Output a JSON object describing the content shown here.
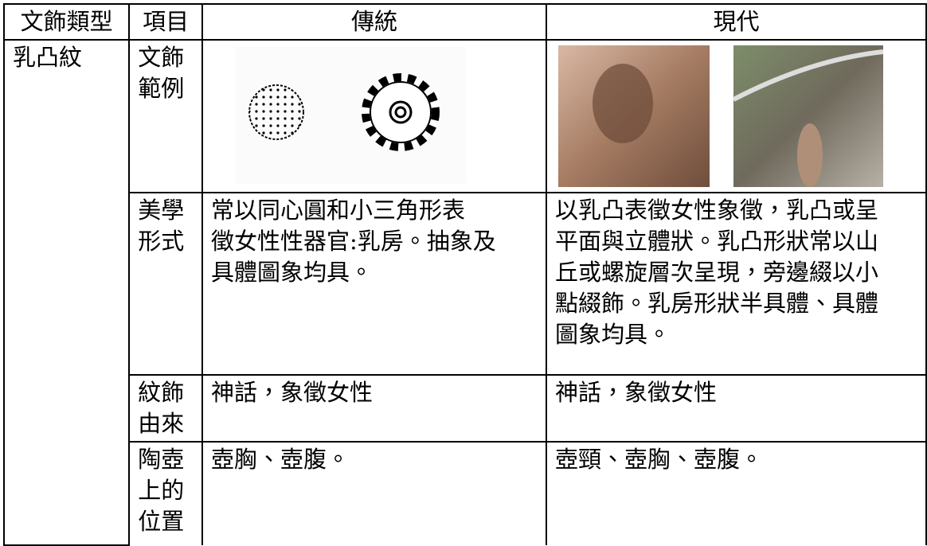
{
  "table": {
    "header": [
      "文飾類型",
      "項目",
      "傳統",
      "現代"
    ],
    "category": "乳凸紋",
    "rows": [
      {
        "item": [
          "文飾",
          "範例"
        ]
      },
      {
        "item": [
          "美學",
          "形式"
        ],
        "traditional": [
          "常以同心圓和小三角形表",
          "徵女性性器官:乳房。抽象及",
          "具體圖象均具。"
        ],
        "modern": [
          "以乳凸表徵女性象徵，乳凸或呈",
          "平面與立體狀。乳凸形狀常以山",
          "丘或螺旋層次呈現，旁邊綴以小",
          "點綴飾。乳房形狀半具體、具體",
          "圖象均具。"
        ]
      },
      {
        "item": [
          "紋飾",
          "由來"
        ],
        "traditional": [
          "神話，象徵女性"
        ],
        "modern": [
          "神話，象徵女性"
        ]
      },
      {
        "item": [
          "陶壺",
          "上的",
          "位置"
        ],
        "traditional": [
          "壺胸、壺腹。"
        ],
        "modern": [
          "壺頸、壺胸、壺腹。"
        ]
      }
    ]
  }
}
